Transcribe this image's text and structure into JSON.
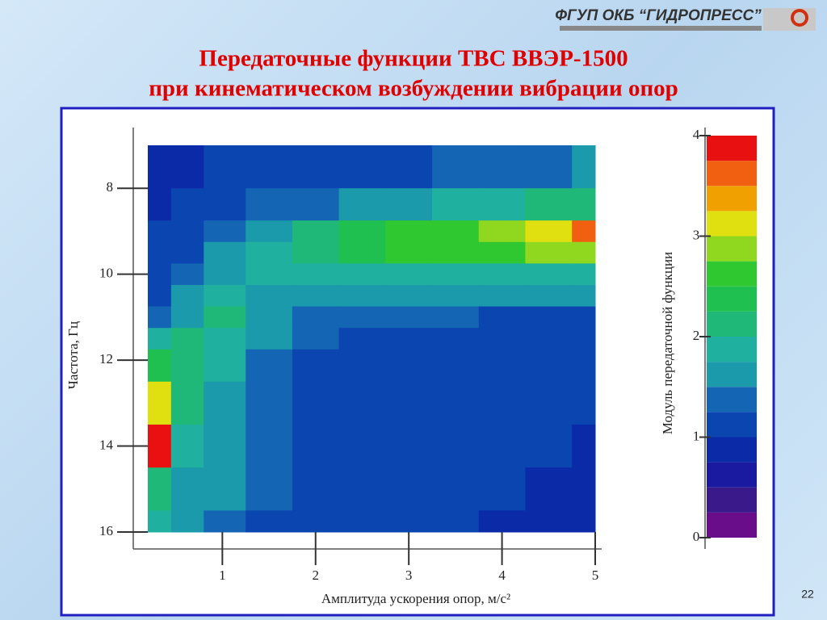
{
  "header": {
    "logo": "ФГУП ОКБ “ГИДРОПРЕСС”",
    "title": [
      "Передаточные функции ТВС  ВВЭР-1500",
      "при кинематическом возбуждении вибрации опор"
    ]
  },
  "chart_data": {
    "type": "contour",
    "xlabel": "Амплитуда ускорения опор, м/с²",
    "ylabel": "Частота, Гц",
    "xlim": [
      0.2,
      5
    ],
    "ylim": [
      7,
      16
    ],
    "xticks": [
      1,
      2,
      3,
      4,
      5
    ],
    "yticks": [
      8,
      10,
      12,
      14,
      16
    ],
    "x": [
      0.3,
      0.6,
      1,
      1.5,
      2,
      2.5,
      3,
      3.5,
      4,
      4.5,
      5
    ],
    "y": [
      7.5,
      8.5,
      9,
      9.5,
      10,
      10.5,
      11,
      11.5,
      12,
      13,
      14,
      15,
      16
    ],
    "z": [
      [
        0.9,
        0.9,
        1.0,
        1.1,
        1.1,
        1.1,
        1.2,
        1.3,
        1.4,
        1.4,
        1.5
      ],
      [
        0.9,
        1.0,
        1.1,
        1.3,
        1.4,
        1.6,
        1.7,
        1.8,
        1.9,
        2.0,
        2.1
      ],
      [
        1.0,
        1.1,
        1.3,
        1.6,
        2.0,
        2.3,
        2.5,
        2.7,
        2.9,
        3.1,
        3.5
      ],
      [
        1.0,
        1.2,
        1.5,
        1.8,
        2.1,
        2.3,
        2.5,
        2.6,
        2.7,
        2.8,
        2.9
      ],
      [
        1.1,
        1.3,
        1.6,
        1.8,
        1.8,
        1.8,
        1.8,
        1.8,
        1.8,
        1.8,
        1.8
      ],
      [
        1.2,
        1.5,
        1.8,
        1.7,
        1.6,
        1.5,
        1.5,
        1.5,
        1.5,
        1.5,
        1.5
      ],
      [
        1.4,
        1.7,
        2.0,
        1.6,
        1.4,
        1.3,
        1.3,
        1.3,
        1.2,
        1.2,
        1.2
      ],
      [
        1.8,
        2.1,
        1.9,
        1.5,
        1.3,
        1.2,
        1.1,
        1.1,
        1.1,
        1.1,
        1.1
      ],
      [
        2.3,
        2.0,
        1.8,
        1.4,
        1.2,
        1.1,
        1.0,
        1.0,
        1.0,
        1.0,
        1.0
      ],
      [
        3.0,
        2.0,
        1.7,
        1.4,
        1.2,
        1.0,
        1.0,
        1.0,
        1.0,
        1.0,
        1.0
      ],
      [
        3.8,
        1.9,
        1.6,
        1.4,
        1.2,
        1.0,
        1.0,
        1.0,
        1.0,
        1.0,
        0.9
      ],
      [
        2.2,
        1.7,
        1.5,
        1.3,
        1.1,
        1.0,
        1.0,
        1.0,
        1.0,
        0.9,
        0.8
      ],
      [
        1.9,
        1.5,
        1.3,
        1.1,
        1.0,
        1.0,
        1.0,
        1.0,
        0.9,
        0.8,
        0.8
      ]
    ],
    "colorbar": {
      "label": "Модуль передаточной функции",
      "lim": [
        0,
        4
      ],
      "ticks": [
        0,
        1,
        2,
        3,
        4
      ],
      "levels": [
        0,
        0.25,
        0.5,
        0.75,
        1,
        1.25,
        1.5,
        1.75,
        2,
        2.25,
        2.5,
        2.75,
        3,
        3.25,
        3.5,
        3.75,
        4
      ],
      "colors": [
        "#6a0d8a",
        "#3a1a8a",
        "#1a1aa0",
        "#0a2aa8",
        "#0a45b0",
        "#1565b5",
        "#1a9aaa",
        "#20b0a0",
        "#20b878",
        "#20c050",
        "#30c830",
        "#90d820",
        "#e0e010",
        "#f0a000",
        "#f06010",
        "#e81010"
      ]
    }
  },
  "page_number": "22"
}
